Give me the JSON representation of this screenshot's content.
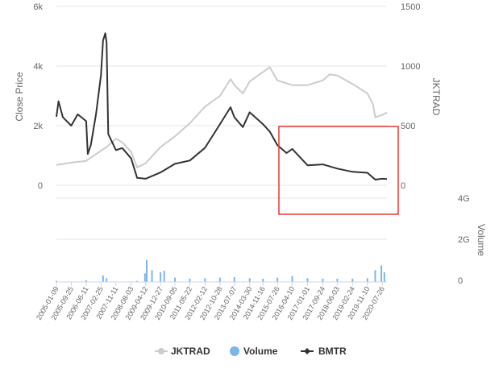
{
  "chart_data": {
    "type": "line",
    "left_axis": {
      "title": "Close Price",
      "ticks": [
        {
          "label": "6k",
          "value": 6000
        },
        {
          "label": "4k",
          "value": 4000
        },
        {
          "label": "2k",
          "value": 2000
        },
        {
          "label": "0",
          "value": 0
        }
      ],
      "range": [
        -450,
        6000
      ]
    },
    "right_axis": {
      "title": "JKTRAD",
      "ticks": [
        {
          "label": "1500",
          "value": 1500
        },
        {
          "label": "1000",
          "value": 1000
        },
        {
          "label": "500",
          "value": 500
        },
        {
          "label": "0",
          "value": 0
        }
      ],
      "range": [
        -112,
        1500
      ]
    },
    "volume_axis": {
      "title": "Volume",
      "ticks": [
        {
          "label": "4G",
          "value": 4
        },
        {
          "label": "2G",
          "value": 2
        },
        {
          "label": "0",
          "value": 0
        }
      ],
      "unit": "G",
      "range": [
        0,
        4
      ]
    },
    "x_ticks": [
      "2005-01-09",
      "2005-09-25",
      "2006-06-11",
      "2007-02-25",
      "2007-11-11",
      "2008-08-03",
      "2009-04-12",
      "2009-12-27",
      "2010-09-05",
      "2011-05-22",
      "2012-02-12",
      "2012-10-28",
      "2013-07-07",
      "2014-03-30",
      "2014-11-16",
      "2015-07-26",
      "2016-04-10",
      "2017-01-01",
      "2017-09-24",
      "2018-06-03",
      "2019-02-24",
      "2019-11-10",
      "2020-07-26"
    ],
    "x_range": [
      "2005-01-09",
      "2020-10-15"
    ],
    "series": [
      {
        "name": "JKTRAD",
        "color": "#cccccc",
        "axis": "right",
        "points": [
          [
            "2005-01-09",
            170
          ],
          [
            "2005-09-25",
            190
          ],
          [
            "2006-06-11",
            205
          ],
          [
            "2007-02-25",
            290
          ],
          [
            "2007-06-01",
            320
          ],
          [
            "2007-11-11",
            390
          ],
          [
            "2008-03-01",
            360
          ],
          [
            "2008-08-03",
            280
          ],
          [
            "2008-11-15",
            150
          ],
          [
            "2009-04-12",
            185
          ],
          [
            "2009-12-27",
            320
          ],
          [
            "2010-09-05",
            410
          ],
          [
            "2011-05-22",
            520
          ],
          [
            "2012-02-12",
            660
          ],
          [
            "2012-10-28",
            750
          ],
          [
            "2013-05-01",
            890
          ],
          [
            "2013-07-07",
            840
          ],
          [
            "2013-12-01",
            770
          ],
          [
            "2014-03-30",
            870
          ],
          [
            "2014-11-16",
            950
          ],
          [
            "2015-03-15",
            990
          ],
          [
            "2015-07-26",
            880
          ],
          [
            "2016-04-10",
            840
          ],
          [
            "2017-01-01",
            840
          ],
          [
            "2017-09-24",
            880
          ],
          [
            "2018-01-20",
            930
          ],
          [
            "2018-06-03",
            920
          ],
          [
            "2019-02-24",
            850
          ],
          [
            "2019-11-10",
            770
          ],
          [
            "2020-02-15",
            680
          ],
          [
            "2020-03-25",
            570
          ],
          [
            "2020-07-26",
            590
          ],
          [
            "2020-10-15",
            610
          ]
        ]
      },
      {
        "name": "BMTR",
        "color": "#333333",
        "axis": "left",
        "points": [
          [
            "2005-01-09",
            2300
          ],
          [
            "2005-02-15",
            2820
          ],
          [
            "2005-05-01",
            2280
          ],
          [
            "2005-09-25",
            2000
          ],
          [
            "2006-01-15",
            2380
          ],
          [
            "2006-06-11",
            2150
          ],
          [
            "2006-07-10",
            1050
          ],
          [
            "2006-09-01",
            1350
          ],
          [
            "2006-12-01",
            2400
          ],
          [
            "2007-02-25",
            3700
          ],
          [
            "2007-04-01",
            4850
          ],
          [
            "2007-05-10",
            5100
          ],
          [
            "2007-06-01",
            4800
          ],
          [
            "2007-07-01",
            1720
          ],
          [
            "2007-11-11",
            1180
          ],
          [
            "2008-03-01",
            1250
          ],
          [
            "2008-08-03",
            900
          ],
          [
            "2008-11-15",
            250
          ],
          [
            "2009-04-12",
            220
          ],
          [
            "2009-12-27",
            430
          ],
          [
            "2010-09-05",
            720
          ],
          [
            "2011-05-22",
            830
          ],
          [
            "2012-02-12",
            1260
          ],
          [
            "2012-10-28",
            2050
          ],
          [
            "2013-05-01",
            2620
          ],
          [
            "2013-07-07",
            2280
          ],
          [
            "2013-12-01",
            1950
          ],
          [
            "2014-03-30",
            2450
          ],
          [
            "2014-11-16",
            2050
          ],
          [
            "2015-03-15",
            1800
          ],
          [
            "2015-07-26",
            1350
          ],
          [
            "2016-01-01",
            1080
          ],
          [
            "2016-04-10",
            1220
          ],
          [
            "2017-01-01",
            670
          ],
          [
            "2017-09-24",
            700
          ],
          [
            "2018-06-03",
            560
          ],
          [
            "2019-02-24",
            450
          ],
          [
            "2019-11-10",
            420
          ],
          [
            "2020-03-25",
            190
          ],
          [
            "2020-07-26",
            220
          ],
          [
            "2020-10-15",
            210
          ]
        ]
      },
      {
        "name": "Volume",
        "color": "#7cb5ec",
        "type": "column",
        "axis": "volume",
        "points": [
          [
            "2005-01-09",
            0.1
          ],
          [
            "2006-06-11",
            0.15
          ],
          [
            "2007-04-01",
            0.6
          ],
          [
            "2007-06-01",
            0.35
          ],
          [
            "2008-11-15",
            0.1
          ],
          [
            "2009-04-01",
            0.8
          ],
          [
            "2009-05-01",
            2.05
          ],
          [
            "2009-08-01",
            1.1
          ],
          [
            "2009-12-27",
            0.9
          ],
          [
            "2010-03-01",
            1.05
          ],
          [
            "2010-09-05",
            0.4
          ],
          [
            "2011-05-22",
            0.3
          ],
          [
            "2012-02-12",
            0.35
          ],
          [
            "2012-10-28",
            0.4
          ],
          [
            "2013-07-07",
            0.45
          ],
          [
            "2014-03-30",
            0.35
          ],
          [
            "2014-11-16",
            0.3
          ],
          [
            "2015-07-26",
            0.4
          ],
          [
            "2016-04-10",
            0.55
          ],
          [
            "2017-01-01",
            0.35
          ],
          [
            "2017-09-24",
            0.3
          ],
          [
            "2018-06-03",
            0.3
          ],
          [
            "2019-02-24",
            0.3
          ],
          [
            "2019-11-10",
            0.35
          ],
          [
            "2020-03-25",
            1.1
          ],
          [
            "2020-07-10",
            1.55
          ],
          [
            "2020-09-01",
            0.9
          ]
        ]
      }
    ],
    "legend": {
      "placement": "bottom-center",
      "items": [
        {
          "name": "JKTRAD",
          "color": "#cccccc",
          "symbol": "line-with-circle"
        },
        {
          "name": "Volume",
          "color": "#7cb5ec",
          "symbol": "circle"
        },
        {
          "name": "BMTR",
          "color": "#333333",
          "symbol": "line-with-diamond"
        }
      ]
    },
    "annotation": {
      "type": "highlight-box",
      "color": "#e53935",
      "start": "2015-07-26",
      "end": "2020-10-15"
    }
  }
}
